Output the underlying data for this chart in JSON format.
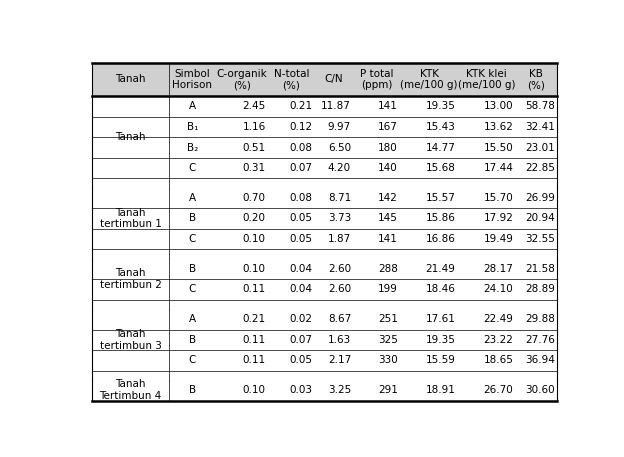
{
  "headers": [
    "Tanah",
    "Simbol\nHorison",
    "C-organik\n(%)",
    "N-total\n(%)",
    "C/N",
    "P total\n(ppm)",
    "KTK\n(me/100 g)",
    "KTK klei\n(me/100 g)",
    "KB\n(%)"
  ],
  "groups": [
    {
      "name": "Tanah",
      "rows": [
        [
          "A",
          "2.45",
          "0.21",
          "11.87",
          "141",
          "19.35",
          "13.00",
          "58.78"
        ],
        [
          "B₁",
          "1.16",
          "0.12",
          "9.97",
          "167",
          "15.43",
          "13.62",
          "32.41"
        ],
        [
          "B₂",
          "0.51",
          "0.08",
          "6.50",
          "180",
          "14.77",
          "15.50",
          "23.01"
        ],
        [
          "C",
          "0.31",
          "0.07",
          "4.20",
          "140",
          "15.68",
          "17.44",
          "22.85"
        ]
      ]
    },
    {
      "name": "Tanah\ntertimbun 1",
      "rows": [
        [
          "A",
          "0.70",
          "0.08",
          "8.71",
          "142",
          "15.57",
          "15.70",
          "26.99"
        ],
        [
          "B",
          "0.20",
          "0.05",
          "3.73",
          "145",
          "15.86",
          "17.92",
          "20.94"
        ],
        [
          "C",
          "0.10",
          "0.05",
          "1.87",
          "141",
          "16.86",
          "19.49",
          "32.55"
        ]
      ]
    },
    {
      "name": "Tanah\ntertimbun 2",
      "rows": [
        [
          "B",
          "0.10",
          "0.04",
          "2.60",
          "288",
          "21.49",
          "28.17",
          "21.58"
        ],
        [
          "C",
          "0.11",
          "0.04",
          "2.60",
          "199",
          "18.46",
          "24.10",
          "28.89"
        ]
      ]
    },
    {
      "name": "Tanah\ntertimbun 3",
      "rows": [
        [
          "A",
          "0.21",
          "0.02",
          "8.67",
          "251",
          "17.61",
          "22.49",
          "29.88"
        ],
        [
          "B",
          "0.11",
          "0.07",
          "1.63",
          "325",
          "19.35",
          "23.22",
          "27.76"
        ],
        [
          "C",
          "0.11",
          "0.05",
          "2.17",
          "330",
          "15.59",
          "18.65",
          "36.94"
        ]
      ]
    },
    {
      "name": "Tanah\nTertimbun 4",
      "rows": [
        [
          "B",
          "0.10",
          "0.03",
          "3.25",
          "291",
          "18.91",
          "26.70",
          "30.60"
        ]
      ]
    }
  ],
  "col_widths_rel": [
    1.4,
    0.85,
    0.95,
    0.85,
    0.7,
    0.85,
    1.05,
    1.05,
    0.75
  ],
  "header_bg": "#d0d0d0",
  "text_color": "#000000",
  "font_size": 7.5,
  "header_font_size": 7.5
}
